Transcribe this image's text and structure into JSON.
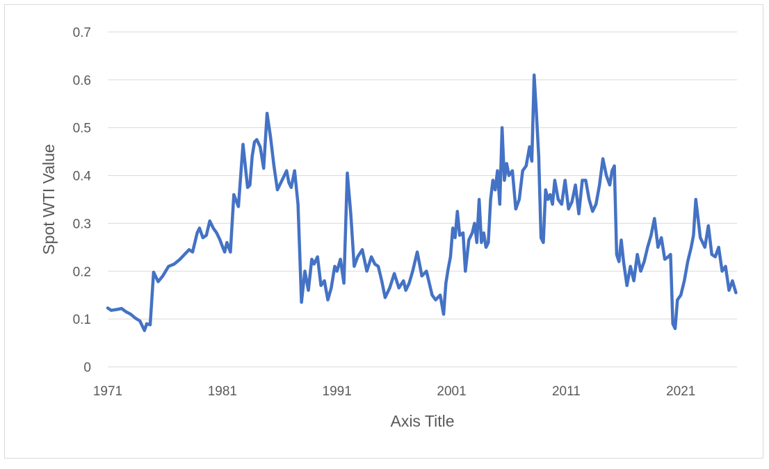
{
  "chart_data": {
    "type": "line",
    "title": "",
    "xlabel": "Axis Title",
    "ylabel": "Spot WTI Value",
    "xlim": [
      1971,
      2025.9
    ],
    "ylim": [
      0,
      0.7
    ],
    "x_ticks": [
      "1971",
      "1981",
      "1991",
      "2001",
      "2011",
      "2021"
    ],
    "y_ticks": [
      "0",
      "0.1",
      "0.2",
      "0.3",
      "0.4",
      "0.5",
      "0.6",
      "0.7"
    ],
    "grid": true,
    "legend": "none",
    "series": [
      {
        "color": "#4472c4",
        "x": [
          1971.0,
          1971.3,
          1971.8,
          1972.2,
          1972.6,
          1973.0,
          1973.4,
          1973.8,
          1974.0,
          1974.2,
          1974.4,
          1974.7,
          1975.0,
          1975.4,
          1975.8,
          1976.3,
          1976.8,
          1977.3,
          1977.7,
          1978.1,
          1978.4,
          1978.8,
          1979.0,
          1979.3,
          1979.6,
          1979.9,
          1980.2,
          1980.5,
          1980.8,
          1981.0,
          1981.2,
          1981.4,
          1981.7,
          1982.0,
          1982.4,
          1982.8,
          1983.0,
          1983.2,
          1983.4,
          1983.6,
          1983.8,
          1984.0,
          1984.3,
          1984.6,
          1984.9,
          1985.2,
          1985.5,
          1985.8,
          1986.0,
          1986.2,
          1986.4,
          1986.6,
          1986.8,
          1987.0,
          1987.3,
          1987.6,
          1987.9,
          1988.2,
          1988.5,
          1988.8,
          1989.0,
          1989.3,
          1989.6,
          1989.9,
          1990.2,
          1990.5,
          1990.8,
          1991.0,
          1991.3,
          1991.6,
          1991.9,
          1992.2,
          1992.5,
          1992.8,
          1993.2,
          1993.6,
          1994.0,
          1994.3,
          1994.6,
          1994.9,
          1995.2,
          1995.6,
          1996.0,
          1996.4,
          1996.8,
          1997.0,
          1997.3,
          1997.6,
          1998.0,
          1998.4,
          1998.8,
          1999.0,
          1999.3,
          1999.6,
          2000.0,
          2000.3,
          2000.5,
          2000.7,
          2000.9,
          2001.1,
          2001.3,
          2001.5,
          2001.7,
          2002.0,
          2002.2,
          2002.5,
          2002.8,
          2003.0,
          2003.2,
          2003.4,
          2003.6,
          2003.8,
          2004.0,
          2004.2,
          2004.4,
          2004.6,
          2004.8,
          2005.0,
          2005.2,
          2005.4,
          2005.6,
          2005.8,
          2006.0,
          2006.3,
          2006.6,
          2006.9,
          2007.2,
          2007.5,
          2007.8,
          2008.0,
          2008.2,
          2008.4,
          2008.6,
          2008.8,
          2009.0,
          2009.2,
          2009.4,
          2009.6,
          2009.8,
          2010.0,
          2010.3,
          2010.6,
          2010.9,
          2011.2,
          2011.5,
          2011.8,
          2012.1,
          2012.4,
          2012.7,
          2013.0,
          2013.3,
          2013.6,
          2013.9,
          2014.2,
          2014.5,
          2014.8,
          2015.0,
          2015.2,
          2015.4,
          2015.6,
          2015.8,
          2016.0,
          2016.3,
          2016.6,
          2016.9,
          2017.2,
          2017.5,
          2017.8,
          2018.1,
          2018.4,
          2018.7,
          2019.0,
          2019.3,
          2019.6,
          2019.9,
          2020.1,
          2020.3,
          2020.5,
          2020.7,
          2021.0,
          2021.3,
          2021.6,
          2021.9,
          2022.1,
          2022.3,
          2022.5,
          2022.7,
          2022.9,
          2023.1,
          2023.4,
          2023.7,
          2024.0,
          2024.3,
          2024.6,
          2024.9,
          2025.2,
          2025.5,
          2025.8
        ],
        "y": [
          0.123,
          0.118,
          0.12,
          0.122,
          0.115,
          0.11,
          0.102,
          0.096,
          0.086,
          0.076,
          0.09,
          0.088,
          0.198,
          0.178,
          0.19,
          0.21,
          0.215,
          0.225,
          0.235,
          0.245,
          0.24,
          0.28,
          0.29,
          0.27,
          0.275,
          0.305,
          0.29,
          0.28,
          0.265,
          0.252,
          0.24,
          0.26,
          0.24,
          0.36,
          0.335,
          0.465,
          0.42,
          0.375,
          0.38,
          0.44,
          0.47,
          0.475,
          0.46,
          0.415,
          0.53,
          0.48,
          0.42,
          0.37,
          0.38,
          0.39,
          0.4,
          0.41,
          0.385,
          0.375,
          0.41,
          0.34,
          0.135,
          0.2,
          0.16,
          0.225,
          0.215,
          0.23,
          0.17,
          0.18,
          0.14,
          0.165,
          0.21,
          0.2,
          0.225,
          0.175,
          0.405,
          0.32,
          0.21,
          0.23,
          0.245,
          0.2,
          0.23,
          0.215,
          0.21,
          0.18,
          0.145,
          0.165,
          0.195,
          0.165,
          0.18,
          0.16,
          0.175,
          0.2,
          0.24,
          0.19,
          0.2,
          0.18,
          0.15,
          0.14,
          0.15,
          0.11,
          0.175,
          0.205,
          0.23,
          0.29,
          0.27,
          0.325,
          0.275,
          0.28,
          0.2,
          0.265,
          0.28,
          0.3,
          0.26,
          0.35,
          0.26,
          0.28,
          0.25,
          0.26,
          0.35,
          0.39,
          0.37,
          0.41,
          0.34,
          0.5,
          0.39,
          0.425,
          0.4,
          0.41,
          0.33,
          0.35,
          0.41,
          0.42,
          0.46,
          0.43,
          0.61,
          0.53,
          0.44,
          0.27,
          0.26,
          0.37,
          0.35,
          0.36,
          0.34,
          0.39,
          0.35,
          0.34,
          0.39,
          0.33,
          0.345,
          0.38,
          0.32,
          0.39,
          0.39,
          0.35,
          0.325,
          0.34,
          0.38,
          0.435,
          0.4,
          0.38,
          0.41,
          0.42,
          0.235,
          0.22,
          0.265,
          0.22,
          0.17,
          0.21,
          0.18,
          0.235,
          0.2,
          0.22,
          0.25,
          0.275,
          0.31,
          0.25,
          0.27,
          0.225,
          0.23,
          0.235,
          0.09,
          0.08,
          0.14,
          0.15,
          0.18,
          0.22,
          0.25,
          0.275,
          0.35,
          0.31,
          0.27,
          0.26,
          0.25,
          0.295,
          0.235,
          0.23,
          0.25,
          0.2,
          0.21,
          0.16,
          0.18,
          0.155
        ],
        "style": "line"
      }
    ]
  }
}
